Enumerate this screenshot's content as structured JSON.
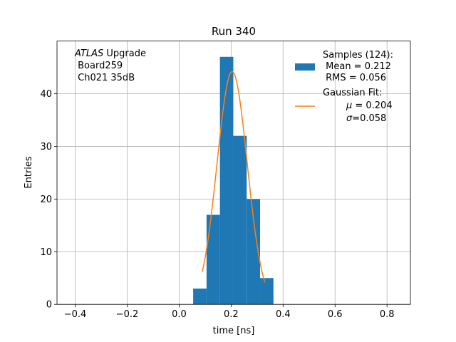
{
  "chart_data": {
    "type": "bar",
    "title": "Run 340",
    "xlabel": "time [ns]",
    "ylabel": "Entries",
    "xlim": [
      -0.47,
      0.89
    ],
    "ylim": [
      0,
      50
    ],
    "grid": true,
    "xticks": [
      -0.4,
      -0.2,
      0.0,
      0.2,
      0.4,
      0.6,
      0.8
    ],
    "xtick_labels": [
      "−0.4",
      "−0.2",
      "0.0",
      "0.2",
      "0.4",
      "0.6",
      "0.8"
    ],
    "yticks": [
      0,
      10,
      20,
      30,
      40
    ],
    "ytick_labels": [
      "0",
      "10",
      "20",
      "30",
      "40"
    ],
    "bar_color": "#1f77b4",
    "fit_color": "#ff7f0e",
    "bins": [
      {
        "x0": 0.054,
        "x1": 0.1055,
        "count": 3
      },
      {
        "x0": 0.1055,
        "x1": 0.157,
        "count": 17
      },
      {
        "x0": 0.157,
        "x1": 0.2085,
        "count": 47
      },
      {
        "x0": 0.2085,
        "x1": 0.26,
        "count": 32
      },
      {
        "x0": 0.26,
        "x1": 0.3115,
        "count": 20
      },
      {
        "x0": 0.3115,
        "x1": 0.363,
        "count": 5
      }
    ],
    "fit": {
      "mu": 0.204,
      "sigma": 0.058,
      "amplitude": 44.2,
      "x_range": [
        0.089,
        0.33
      ]
    },
    "annotation": {
      "italic": "ATLAS",
      "rest": " Upgrade",
      "line2": " Board259",
      "line3": " Ch021 35dB"
    },
    "legend": {
      "placement": "upper right",
      "samples": {
        "line1": "Samples (124):",
        "line2": " Mean = 0.212",
        "line3": " RMS = 0.056"
      },
      "fit": {
        "line1": "Gaussian Fit:",
        "mu_symbol": "μ",
        "mu_text": " = 0.204",
        "sigma_symbol": "σ",
        "sigma_text": "=0.058"
      }
    }
  }
}
